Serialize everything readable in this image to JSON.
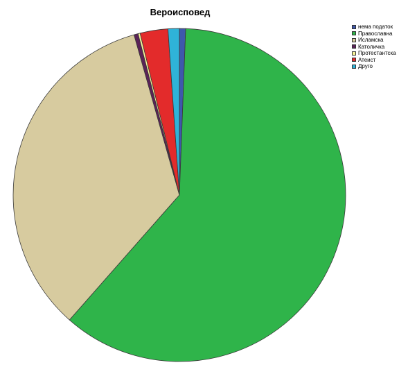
{
  "chart_data": {
    "type": "pie",
    "title": "Вероисповед",
    "categories": [
      "нема податок",
      "Православна",
      "Исламска",
      "Католичка",
      "Протестантска",
      "Атеист",
      "Друго"
    ],
    "values": [
      0.6,
      60.9,
      34.1,
      0.4,
      0.2,
      2.7,
      1.1
    ],
    "colors": [
      "#3e58ac",
      "#2fb44a",
      "#d7cb9f",
      "#5a2257",
      "#f7f49a",
      "#e32b2b",
      "#2fb3d8"
    ],
    "legend_position": "top-right"
  }
}
